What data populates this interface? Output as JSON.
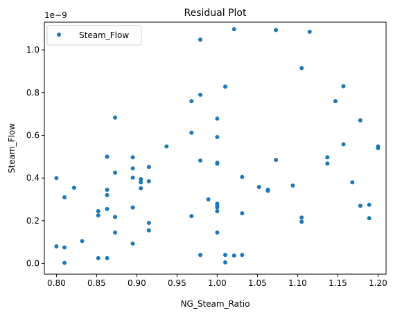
{
  "chart_data": {
    "type": "scatter",
    "title": "Residual Plot",
    "xlabel": "NG_Steam_Ratio",
    "ylabel": "Steam_Flow",
    "y_offset_label": "1e−9",
    "xlim": [
      0.785,
      1.21
    ],
    "ylim": [
      -0.05,
      1.13
    ],
    "xticks": [
      0.8,
      0.85,
      0.9,
      0.95,
      1.0,
      1.05,
      1.1,
      1.15,
      1.2
    ],
    "xtick_labels": [
      "0.80",
      "0.85",
      "0.90",
      "0.95",
      "1.00",
      "1.05",
      "1.10",
      "1.15",
      "1.20"
    ],
    "yticks": [
      0.0,
      0.2,
      0.4,
      0.6,
      0.8,
      1.0
    ],
    "ytick_labels": [
      "0.0",
      "0.2",
      "0.4",
      "0.6",
      "0.8",
      "1.0"
    ],
    "grid": false,
    "legend_position": "top-left",
    "series": [
      {
        "name": "Steam_Flow",
        "color": "#1f77b4",
        "points": [
          [
            0.8,
            0.4
          ],
          [
            0.8,
            0.08
          ],
          [
            0.81,
            0.31
          ],
          [
            0.81,
            0.075
          ],
          [
            0.81,
            0.003
          ],
          [
            0.822,
            0.355
          ],
          [
            0.832,
            0.105
          ],
          [
            0.852,
            0.245
          ],
          [
            0.852,
            0.225
          ],
          [
            0.852,
            0.025
          ],
          [
            0.863,
            0.5
          ],
          [
            0.863,
            0.345
          ],
          [
            0.863,
            0.32
          ],
          [
            0.863,
            0.255
          ],
          [
            0.863,
            0.025
          ],
          [
            0.873,
            0.683
          ],
          [
            0.873,
            0.425
          ],
          [
            0.873,
            0.218
          ],
          [
            0.873,
            0.145
          ],
          [
            0.895,
            0.497
          ],
          [
            0.895,
            0.445
          ],
          [
            0.895,
            0.402
          ],
          [
            0.895,
            0.262
          ],
          [
            0.895,
            0.093
          ],
          [
            0.905,
            0.395
          ],
          [
            0.905,
            0.38
          ],
          [
            0.905,
            0.352
          ],
          [
            0.915,
            0.452
          ],
          [
            0.915,
            0.385
          ],
          [
            0.915,
            0.19
          ],
          [
            0.915,
            0.155
          ],
          [
            0.937,
            0.548
          ],
          [
            0.968,
            0.76
          ],
          [
            0.968,
            0.612
          ],
          [
            0.968,
            0.222
          ],
          [
            0.979,
            1.048
          ],
          [
            0.979,
            0.79
          ],
          [
            0.979,
            0.482
          ],
          [
            0.979,
            0.04
          ],
          [
            0.989,
            0.3
          ],
          [
            1.0,
            0.678
          ],
          [
            1.0,
            0.592
          ],
          [
            1.0,
            0.472
          ],
          [
            1.0,
            0.467
          ],
          [
            1.0,
            0.28
          ],
          [
            1.0,
            0.27
          ],
          [
            1.0,
            0.262
          ],
          [
            1.0,
            0.245
          ],
          [
            1.0,
            0.145
          ],
          [
            1.01,
            0.828
          ],
          [
            1.01,
            0.04
          ],
          [
            1.01,
            0.005
          ],
          [
            1.021,
            1.097
          ],
          [
            1.021,
            0.037
          ],
          [
            1.031,
            0.405
          ],
          [
            1.031,
            0.235
          ],
          [
            1.031,
            0.04
          ],
          [
            1.052,
            0.358
          ],
          [
            1.063,
            0.345
          ],
          [
            1.063,
            0.34
          ],
          [
            1.073,
            1.093
          ],
          [
            1.073,
            0.485
          ],
          [
            1.094,
            0.365
          ],
          [
            1.105,
            0.915
          ],
          [
            1.105,
            0.215
          ],
          [
            1.105,
            0.195
          ],
          [
            1.115,
            1.085
          ],
          [
            1.137,
            0.497
          ],
          [
            1.137,
            0.468
          ],
          [
            1.147,
            0.76
          ],
          [
            1.157,
            0.83
          ],
          [
            1.157,
            0.558
          ],
          [
            1.168,
            0.38
          ],
          [
            1.178,
            0.67
          ],
          [
            1.178,
            0.27
          ],
          [
            1.189,
            0.275
          ],
          [
            1.189,
            0.212
          ],
          [
            1.2,
            0.548
          ],
          [
            1.2,
            0.54
          ]
        ]
      }
    ]
  }
}
